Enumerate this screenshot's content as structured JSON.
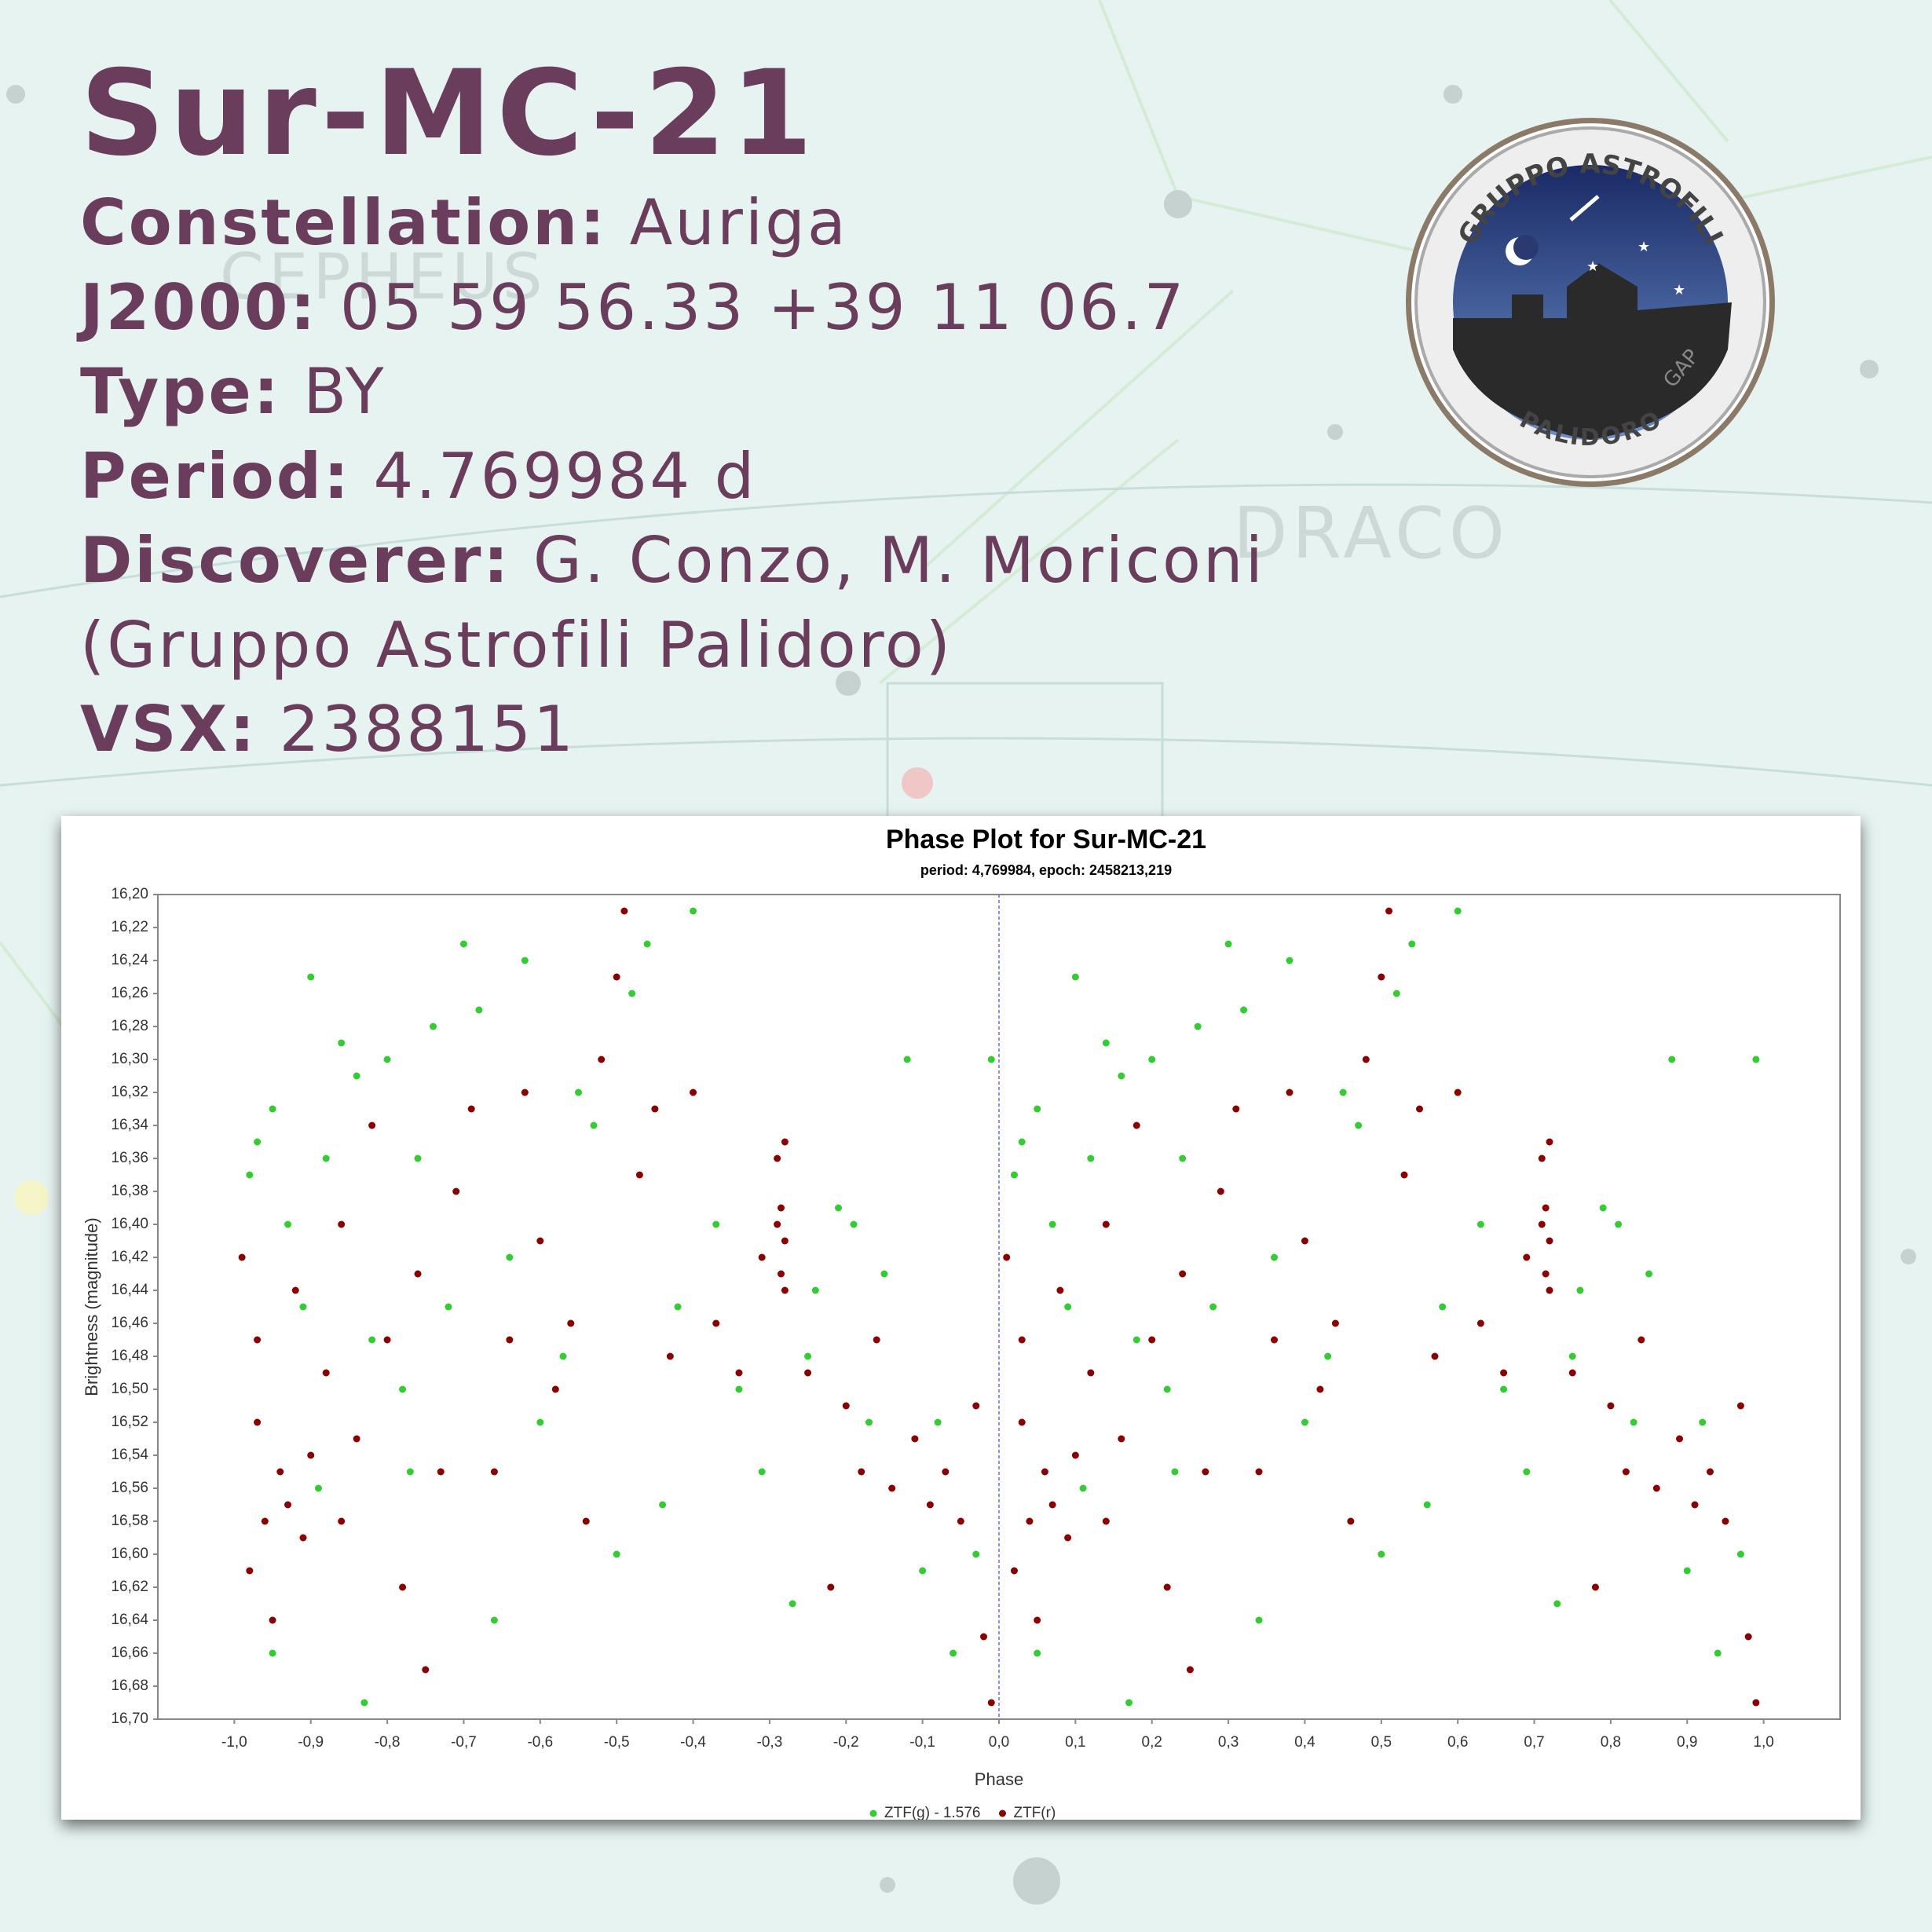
{
  "header": {
    "title": "Sur-MC-21",
    "lines": [
      {
        "label": "Constellation:",
        "value": "Auriga"
      },
      {
        "label": "J2000:",
        "value": "05 59 56.33 +39 11 06.7"
      },
      {
        "label": "Type:",
        "value": "BY"
      },
      {
        "label": "Period:",
        "value": "4.769984 d"
      },
      {
        "label": "Discoverer:",
        "value": "G. Conzo, M. Moriconi"
      }
    ],
    "continuation": "(Gruppo Astrofili Palidoro)",
    "last": {
      "label": "VSX:",
      "value": "2388151"
    }
  },
  "logo": {
    "top": "GRUPPO ASTROFILI",
    "bottom": "PALIDORO",
    "mark": "GAP"
  },
  "chart_data": {
    "type": "scatter",
    "title": "Phase Plot for Sur-MC-21",
    "subtitle": "period: 4,769984, epoch: 2458213,219",
    "x_label": "Phase",
    "y_label": "Brightness (magnitude)",
    "legend": "bottom",
    "xlim": [
      -1.1,
      1.1
    ],
    "ylim": [
      16.7,
      16.2
    ],
    "xticks": [
      {
        "value": -1,
        "label": "-1,0"
      },
      {
        "value": -0.9,
        "label": "-0,9"
      },
      {
        "value": -0.8,
        "label": "-0,8"
      },
      {
        "value": -0.7,
        "label": "-0,7"
      },
      {
        "value": -0.6,
        "label": "-0,6"
      },
      {
        "value": -0.5,
        "label": "-0,5"
      },
      {
        "value": -0.4,
        "label": "-0,4"
      },
      {
        "value": -0.3,
        "label": "-0,3"
      },
      {
        "value": -0.2,
        "label": "-0,2"
      },
      {
        "value": -0.1,
        "label": "-0,1"
      },
      {
        "value": 0,
        "label": "0,0"
      },
      {
        "value": 0.1,
        "label": "0,1"
      },
      {
        "value": 0.2,
        "label": "0,2"
      },
      {
        "value": 0.3,
        "label": "0,3"
      },
      {
        "value": 0.4,
        "label": "0,4"
      },
      {
        "value": 0.5,
        "label": "0,5"
      },
      {
        "value": 0.6,
        "label": "0,6"
      },
      {
        "value": 0.7,
        "label": "0,7"
      },
      {
        "value": 0.8,
        "label": "0,8"
      },
      {
        "value": 0.9,
        "label": "0,9"
      },
      {
        "value": 1,
        "label": "1,0"
      }
    ],
    "yticks": [
      {
        "value": 16.2,
        "label": "16,20"
      },
      {
        "value": 16.22,
        "label": "16,22"
      },
      {
        "value": 16.24,
        "label": "16,24"
      },
      {
        "value": 16.26,
        "label": "16,26"
      },
      {
        "value": 16.28,
        "label": "16,28"
      },
      {
        "value": 16.3,
        "label": "16,30"
      },
      {
        "value": 16.32,
        "label": "16,32"
      },
      {
        "value": 16.34,
        "label": "16,34"
      },
      {
        "value": 16.36,
        "label": "16,36"
      },
      {
        "value": 16.38,
        "label": "16,38"
      },
      {
        "value": 16.4,
        "label": "16,40"
      },
      {
        "value": 16.42,
        "label": "16,42"
      },
      {
        "value": 16.44,
        "label": "16,44"
      },
      {
        "value": 16.46,
        "label": "16,46"
      },
      {
        "value": 16.48,
        "label": "16,48"
      },
      {
        "value": 16.5,
        "label": "16,50"
      },
      {
        "value": 16.52,
        "label": "16,52"
      },
      {
        "value": 16.54,
        "label": "16,54"
      },
      {
        "value": 16.56,
        "label": "16,56"
      },
      {
        "value": 16.58,
        "label": "16,58"
      },
      {
        "value": 16.6,
        "label": "16,60"
      },
      {
        "value": 16.62,
        "label": "16,62"
      },
      {
        "value": 16.64,
        "label": "16,64"
      },
      {
        "value": 16.66,
        "label": "16,66"
      },
      {
        "value": 16.68,
        "label": "16,68"
      },
      {
        "value": 16.7,
        "label": "16,70"
      }
    ],
    "series": [
      {
        "name": "ZTF(g) - 1.576",
        "color": "#33cc33",
        "x": [
          -0.98,
          -0.97,
          -0.95,
          -0.93,
          -0.91,
          -0.9,
          -0.88,
          -0.86,
          -0.84,
          -0.82,
          -0.8,
          -0.78,
          -0.76,
          -0.74,
          -0.72,
          -0.7,
          -0.68,
          -0.66,
          -0.64,
          -0.62,
          -0.6,
          -0.57,
          -0.55,
          -0.53,
          -0.5,
          -0.48,
          -0.46,
          -0.44,
          -0.42,
          -0.4,
          -0.37,
          -0.34,
          -0.31,
          -0.27,
          -0.24,
          -0.21,
          -0.19,
          -0.17,
          -0.15,
          -0.12,
          -0.1,
          -0.08,
          -0.06,
          -0.03,
          -0.01,
          -0.95,
          -0.83,
          -0.89,
          -0.77,
          -0.25,
          0.02,
          0.03,
          0.05,
          0.07,
          0.09,
          0.1,
          0.12,
          0.14,
          0.16,
          0.18,
          0.2,
          0.22,
          0.24,
          0.26,
          0.28,
          0.3,
          0.32,
          0.34,
          0.36,
          0.38,
          0.4,
          0.43,
          0.45,
          0.47,
          0.5,
          0.52,
          0.54,
          0.56,
          0.58,
          0.6,
          0.63,
          0.66,
          0.69,
          0.73,
          0.76,
          0.79,
          0.81,
          0.83,
          0.85,
          0.88,
          0.9,
          0.92,
          0.94,
          0.97,
          0.99,
          0.05,
          0.17,
          0.11,
          0.23,
          0.75
        ],
        "values": [
          16.37,
          16.35,
          16.33,
          16.4,
          16.45,
          16.25,
          16.36,
          16.29,
          16.31,
          16.47,
          16.3,
          16.5,
          16.36,
          16.28,
          16.45,
          16.23,
          16.27,
          16.64,
          16.42,
          16.24,
          16.52,
          16.48,
          16.32,
          16.34,
          16.6,
          16.26,
          16.23,
          16.57,
          16.45,
          16.21,
          16.4,
          16.5,
          16.55,
          16.63,
          16.44,
          16.39,
          16.4,
          16.52,
          16.43,
          16.3,
          16.61,
          16.52,
          16.66,
          16.6,
          16.3,
          16.66,
          16.69,
          16.56,
          16.55,
          16.48,
          16.37,
          16.35,
          16.33,
          16.4,
          16.45,
          16.25,
          16.36,
          16.29,
          16.31,
          16.47,
          16.3,
          16.5,
          16.36,
          16.28,
          16.45,
          16.23,
          16.27,
          16.64,
          16.42,
          16.24,
          16.52,
          16.48,
          16.32,
          16.34,
          16.6,
          16.26,
          16.23,
          16.57,
          16.45,
          16.21,
          16.4,
          16.5,
          16.55,
          16.63,
          16.44,
          16.39,
          16.4,
          16.52,
          16.43,
          16.3,
          16.61,
          16.52,
          16.66,
          16.6,
          16.3,
          16.66,
          16.69,
          16.56,
          16.55,
          16.48
        ]
      },
      {
        "name": "ZTF(r)",
        "color": "#8b0000",
        "x": [
          -0.99,
          -0.98,
          -0.97,
          -0.96,
          -0.95,
          -0.94,
          -0.93,
          -0.92,
          -0.9,
          -0.88,
          -0.86,
          -0.84,
          -0.82,
          -0.8,
          -0.78,
          -0.76,
          -0.75,
          -0.73,
          -0.71,
          -0.69,
          -0.66,
          -0.64,
          -0.62,
          -0.6,
          -0.58,
          -0.56,
          -0.54,
          -0.52,
          -0.5,
          -0.49,
          -0.47,
          -0.45,
          -0.43,
          -0.4,
          -0.37,
          -0.34,
          -0.31,
          -0.29,
          -0.285,
          -0.28,
          -0.285,
          -0.28,
          -0.29,
          -0.28,
          -0.25,
          -0.22,
          -0.2,
          -0.18,
          -0.16,
          -0.14,
          -0.11,
          -0.09,
          -0.07,
          -0.05,
          -0.03,
          -0.02,
          -0.01,
          -0.97,
          -0.91,
          -0.86,
          0.01,
          0.02,
          0.03,
          0.04,
          0.05,
          0.06,
          0.07,
          0.08,
          0.1,
          0.12,
          0.14,
          0.16,
          0.18,
          0.2,
          0.22,
          0.24,
          0.25,
          0.27,
          0.29,
          0.31,
          0.34,
          0.36,
          0.38,
          0.4,
          0.42,
          0.44,
          0.46,
          0.48,
          0.5,
          0.51,
          0.53,
          0.55,
          0.57,
          0.6,
          0.63,
          0.66,
          0.69,
          0.71,
          0.715,
          0.72,
          0.715,
          0.72,
          0.71,
          0.72,
          0.75,
          0.78,
          0.8,
          0.82,
          0.84,
          0.86,
          0.89,
          0.91,
          0.93,
          0.95,
          0.97,
          0.98,
          0.99,
          0.03,
          0.09,
          0.14
        ],
        "values": [
          16.42,
          16.61,
          16.52,
          16.58,
          16.64,
          16.55,
          16.57,
          16.44,
          16.54,
          16.49,
          16.4,
          16.53,
          16.34,
          16.47,
          16.62,
          16.43,
          16.67,
          16.55,
          16.38,
          16.33,
          16.55,
          16.47,
          16.32,
          16.41,
          16.5,
          16.46,
          16.58,
          16.3,
          16.25,
          16.21,
          16.37,
          16.33,
          16.48,
          16.32,
          16.46,
          16.49,
          16.42,
          16.36,
          16.39,
          16.41,
          16.43,
          16.35,
          16.4,
          16.44,
          16.49,
          16.62,
          16.51,
          16.55,
          16.47,
          16.56,
          16.53,
          16.57,
          16.55,
          16.58,
          16.51,
          16.65,
          16.69,
          16.47,
          16.59,
          16.58,
          16.42,
          16.61,
          16.52,
          16.58,
          16.64,
          16.55,
          16.57,
          16.44,
          16.54,
          16.49,
          16.4,
          16.53,
          16.34,
          16.47,
          16.62,
          16.43,
          16.67,
          16.55,
          16.38,
          16.33,
          16.55,
          16.47,
          16.32,
          16.41,
          16.5,
          16.46,
          16.58,
          16.3,
          16.25,
          16.21,
          16.37,
          16.33,
          16.48,
          16.32,
          16.46,
          16.49,
          16.42,
          16.36,
          16.39,
          16.41,
          16.43,
          16.35,
          16.4,
          16.44,
          16.49,
          16.62,
          16.51,
          16.55,
          16.47,
          16.56,
          16.53,
          16.57,
          16.55,
          16.58,
          16.51,
          16.65,
          16.69,
          16.47,
          16.59,
          16.58
        ]
      }
    ]
  }
}
